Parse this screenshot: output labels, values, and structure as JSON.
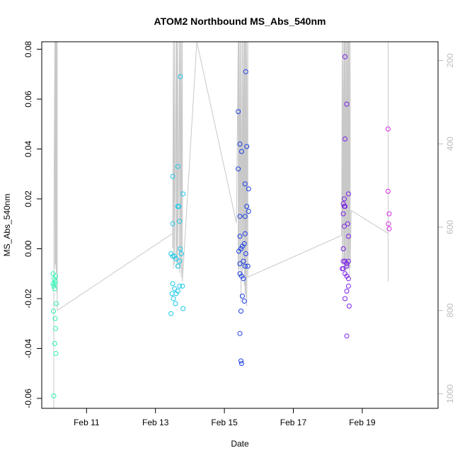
{
  "chart_data": {
    "type": "scatter",
    "title": "ATOM2 Northbound MS_Abs_540nm",
    "xlabel": "Date",
    "ylabel": "MS_Abs_540nm",
    "x_ticks": [
      "Feb 11",
      "Feb 13",
      "Feb 15",
      "Feb 17",
      "Feb 19"
    ],
    "x_tick_days": [
      11,
      13,
      15,
      17,
      19
    ],
    "xlim_days": [
      9.7,
      21.2
    ],
    "y_ticks": [
      "-0.06",
      "-0.04",
      "-0.02",
      "0.00",
      "0.02",
      "0.04",
      "0.06",
      "0.08"
    ],
    "y_tick_values": [
      -0.06,
      -0.04,
      -0.02,
      0.0,
      0.02,
      0.04,
      0.06,
      0.08
    ],
    "ylim": [
      -0.064,
      0.083
    ],
    "right_axis": {
      "ticks": [
        "200",
        "400",
        "600",
        "800",
        "1000"
      ],
      "tick_values": [
        200,
        400,
        600,
        800,
        1000
      ],
      "ylim": [
        1035,
        155
      ],
      "color": "#bdbdbd"
    },
    "depth_trace": [
      [
        10.05,
        1035
      ],
      [
        10.05,
        620
      ],
      [
        10.08,
        155
      ],
      [
        10.08,
        700
      ],
      [
        10.1,
        155
      ],
      [
        10.1,
        690
      ],
      [
        10.12,
        155
      ],
      [
        10.12,
        710
      ],
      [
        10.14,
        155
      ],
      [
        10.14,
        760
      ],
      [
        10.15,
        155
      ],
      [
        10.15,
        800
      ],
      [
        13.5,
        615
      ],
      [
        13.5,
        650
      ],
      [
        13.52,
        155
      ],
      [
        13.52,
        700
      ],
      [
        13.55,
        155
      ],
      [
        13.55,
        690
      ],
      [
        13.6,
        155
      ],
      [
        13.6,
        680
      ],
      [
        13.62,
        155
      ],
      [
        13.62,
        700
      ],
      [
        13.65,
        155
      ],
      [
        13.65,
        690
      ],
      [
        13.7,
        155
      ],
      [
        13.7,
        710
      ],
      [
        13.72,
        155
      ],
      [
        13.72,
        700
      ],
      [
        13.75,
        155
      ],
      [
        13.75,
        720
      ],
      [
        13.78,
        155
      ],
      [
        13.78,
        730
      ],
      [
        14.2,
        155
      ],
      [
        15.35,
        590
      ],
      [
        15.4,
        155
      ],
      [
        15.4,
        700
      ],
      [
        15.42,
        155
      ],
      [
        15.42,
        720
      ],
      [
        15.45,
        155
      ],
      [
        15.45,
        700
      ],
      [
        15.48,
        155
      ],
      [
        15.48,
        780
      ],
      [
        15.52,
        155
      ],
      [
        15.52,
        720
      ],
      [
        15.55,
        155
      ],
      [
        15.55,
        700
      ],
      [
        15.58,
        155
      ],
      [
        15.58,
        740
      ],
      [
        15.6,
        155
      ],
      [
        15.6,
        760
      ],
      [
        15.62,
        155
      ],
      [
        15.62,
        770
      ],
      [
        15.65,
        155
      ],
      [
        15.65,
        790
      ],
      [
        15.68,
        155
      ],
      [
        15.68,
        720
      ],
      [
        18.4,
        620
      ],
      [
        18.42,
        155
      ],
      [
        18.42,
        690
      ],
      [
        18.45,
        155
      ],
      [
        18.45,
        700
      ],
      [
        18.48,
        155
      ],
      [
        18.48,
        700
      ],
      [
        18.5,
        155
      ],
      [
        18.5,
        690
      ],
      [
        18.53,
        155
      ],
      [
        18.53,
        720
      ],
      [
        18.55,
        155
      ],
      [
        18.55,
        700
      ],
      [
        18.58,
        155
      ],
      [
        18.58,
        700
      ],
      [
        18.6,
        155
      ],
      [
        18.6,
        690
      ],
      [
        18.62,
        155
      ],
      [
        18.62,
        720
      ],
      [
        18.65,
        155
      ],
      [
        18.65,
        700
      ],
      [
        18.68,
        560
      ],
      [
        19.75,
        615
      ],
      [
        19.75,
        155
      ],
      [
        19.75,
        730
      ]
    ],
    "series": [
      {
        "color": "#2ef3b4",
        "points": [
          [
            10.03,
            -0.01
          ],
          [
            10.03,
            -0.014
          ],
          [
            10.05,
            -0.015
          ],
          [
            10.06,
            -0.012
          ],
          [
            10.07,
            -0.016
          ],
          [
            10.08,
            -0.014
          ],
          [
            10.09,
            -0.013
          ],
          [
            10.1,
            -0.011
          ],
          [
            10.12,
            -0.022
          ],
          [
            10.04,
            -0.025
          ],
          [
            10.09,
            -0.028
          ],
          [
            10.1,
            -0.032
          ],
          [
            10.08,
            -0.038
          ],
          [
            10.11,
            -0.042
          ],
          [
            10.05,
            -0.059
          ]
        ]
      },
      {
        "color": "#19c8e8",
        "points": [
          [
            13.45,
            -0.002
          ],
          [
            13.5,
            -0.003
          ],
          [
            13.55,
            -0.003
          ],
          [
            13.6,
            -0.004
          ],
          [
            13.65,
            -0.007
          ],
          [
            13.7,
            -0.005
          ],
          [
            13.72,
            0.0
          ],
          [
            13.75,
            -0.002
          ],
          [
            13.5,
            -0.014
          ],
          [
            13.55,
            -0.016
          ],
          [
            13.6,
            -0.018
          ],
          [
            13.65,
            -0.017
          ],
          [
            13.7,
            -0.015
          ],
          [
            13.78,
            -0.015
          ],
          [
            13.48,
            -0.018
          ],
          [
            13.52,
            -0.02
          ],
          [
            13.58,
            -0.022
          ],
          [
            13.8,
            -0.024
          ],
          [
            13.45,
            -0.026
          ],
          [
            13.5,
            0.01
          ],
          [
            13.7,
            0.011
          ],
          [
            13.65,
            0.017
          ],
          [
            13.68,
            0.017
          ],
          [
            13.8,
            0.022
          ],
          [
            13.5,
            0.029
          ],
          [
            13.65,
            0.033
          ],
          [
            13.72,
            0.069
          ]
        ]
      },
      {
        "color": "#1a3ee6",
        "points": [
          [
            15.4,
            0.055
          ],
          [
            15.45,
            0.042
          ],
          [
            15.5,
            0.039
          ],
          [
            15.65,
            0.041
          ],
          [
            15.4,
            0.032
          ],
          [
            15.6,
            0.026
          ],
          [
            15.7,
            0.024
          ],
          [
            15.62,
            0.071
          ],
          [
            15.65,
            0.017
          ],
          [
            15.7,
            0.015
          ],
          [
            15.45,
            0.013
          ],
          [
            15.6,
            0.013
          ],
          [
            15.45,
            0.005
          ],
          [
            15.6,
            0.006
          ],
          [
            15.42,
            -0.001
          ],
          [
            15.48,
            0.0
          ],
          [
            15.52,
            0.001
          ],
          [
            15.58,
            0.002
          ],
          [
            15.62,
            -0.002
          ],
          [
            15.45,
            -0.006
          ],
          [
            15.55,
            -0.005
          ],
          [
            15.6,
            -0.007
          ],
          [
            15.68,
            -0.007
          ],
          [
            15.45,
            -0.01
          ],
          [
            15.5,
            -0.011
          ],
          [
            15.55,
            -0.012
          ],
          [
            15.52,
            -0.019
          ],
          [
            15.58,
            -0.021
          ],
          [
            15.48,
            -0.025
          ],
          [
            15.45,
            -0.034
          ],
          [
            15.48,
            -0.045
          ],
          [
            15.5,
            -0.046
          ]
        ]
      },
      {
        "color": "#7a1ee8",
        "points": [
          [
            18.5,
            0.077
          ],
          [
            18.55,
            0.058
          ],
          [
            18.5,
            0.044
          ],
          [
            18.6,
            0.022
          ],
          [
            18.48,
            0.02
          ],
          [
            18.45,
            0.018
          ],
          [
            18.48,
            0.017
          ],
          [
            18.5,
            0.017
          ],
          [
            18.45,
            0.014
          ],
          [
            18.58,
            0.01
          ],
          [
            18.48,
            0.009
          ],
          [
            18.6,
            0.005
          ],
          [
            18.45,
            0.0
          ],
          [
            18.45,
            -0.005
          ],
          [
            18.5,
            -0.005
          ],
          [
            18.55,
            -0.006
          ],
          [
            18.6,
            -0.005
          ],
          [
            18.55,
            -0.007
          ],
          [
            18.42,
            -0.008
          ],
          [
            18.45,
            -0.008
          ],
          [
            18.5,
            -0.01
          ],
          [
            18.55,
            -0.011
          ],
          [
            18.6,
            -0.012
          ],
          [
            18.6,
            -0.015
          ],
          [
            18.55,
            -0.017
          ],
          [
            18.5,
            -0.02
          ],
          [
            18.62,
            -0.023
          ],
          [
            18.55,
            -0.035
          ]
        ]
      },
      {
        "color": "#d22be0",
        "points": [
          [
            19.75,
            0.048
          ],
          [
            19.75,
            0.023
          ],
          [
            19.78,
            0.014
          ],
          [
            19.76,
            0.01
          ],
          [
            19.78,
            0.008
          ]
        ]
      }
    ]
  }
}
